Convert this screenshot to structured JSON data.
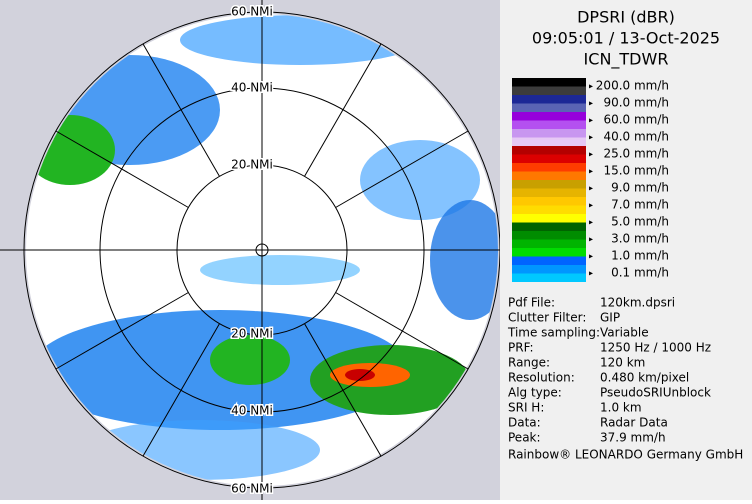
{
  "header": {
    "lines": [
      "DPSRI (dBR)",
      "09:05:01 / 13-Oct-2025",
      "ICN_TDWR"
    ]
  },
  "map": {
    "ring_labels": [
      "60 NMi",
      "40 NMi",
      "20 NMi",
      "20 NMi",
      "40 NMi",
      "60 NMi"
    ]
  },
  "legend": [
    {
      "label": "200.0 mm/h",
      "colors": [
        "#000000",
        "#3c3c3c"
      ]
    },
    {
      "label": "90.0 mm/h",
      "colors": [
        "#1c2896",
        "#5a64b4"
      ]
    },
    {
      "label": "60.0 mm/h",
      "colors": [
        "#9600dc",
        "#b450f0"
      ]
    },
    {
      "label": "40.0 mm/h",
      "colors": [
        "#c896f0",
        "#e6c8f5"
      ]
    },
    {
      "label": "25.0 mm/h",
      "colors": [
        "#b40000",
        "#dc0000"
      ]
    },
    {
      "label": "15.0 mm/h",
      "colors": [
        "#ff3c00",
        "#ff7800"
      ]
    },
    {
      "label": "9.0 mm/h",
      "colors": [
        "#c8a000",
        "#e6b400"
      ]
    },
    {
      "label": "7.0 mm/h",
      "colors": [
        "#ffc800",
        "#ffdc00"
      ]
    },
    {
      "label": "5.0 mm/h",
      "colors": [
        "#ffff00",
        "#006400"
      ]
    },
    {
      "label": "3.0 mm/h",
      "colors": [
        "#008c00",
        "#00b400"
      ]
    },
    {
      "label": "1.0 mm/h",
      "colors": [
        "#00dc00",
        "#0064ff"
      ]
    },
    {
      "label": "0.1 mm/h",
      "colors": [
        "#0096ff",
        "#00c8ff"
      ]
    }
  ],
  "info": [
    [
      "Pdf File:",
      "120km.dpsri"
    ],
    [
      "Clutter Filter:",
      "GIP"
    ],
    [
      "Time sampling:",
      "Variable"
    ],
    [
      "PRF:",
      "1250 Hz / 1000 Hz"
    ],
    [
      "Range:",
      "120 km"
    ],
    [
      "Resolution:",
      "0.480 km/pixel"
    ],
    [
      "Alg type:",
      "PseudoSRIUnblock"
    ],
    [
      "SRI H:",
      "1.0 km"
    ],
    [
      "Data:",
      "Radar Data"
    ],
    [
      "Peak:",
      "37.9 mm/h"
    ]
  ],
  "footer": "Rainbow® LEONARDO Germany GmbH"
}
